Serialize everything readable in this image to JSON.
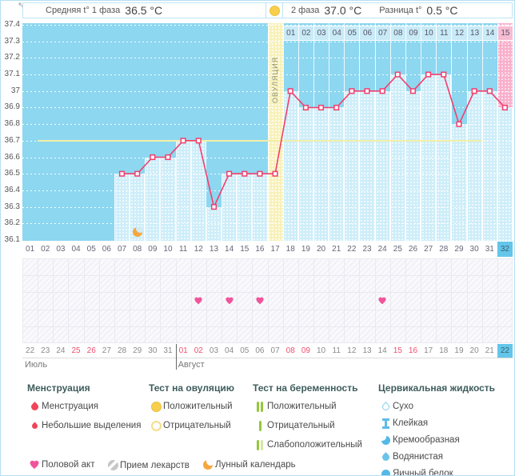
{
  "header": {
    "unit": "°C",
    "phase1_label": "Средняя t° 1 фаза",
    "phase1_value": "36.5 °C",
    "phase2_label": "2 фаза",
    "phase2_value": "37.0 °C",
    "diff_label": "Разница t°",
    "diff_value": "0.5 °C"
  },
  "chart_data": {
    "type": "line",
    "title": "Basal body temperature cycle chart",
    "ylabel": "°C",
    "ylim": [
      36.1,
      37.4
    ],
    "ytick_step": 0.1,
    "grid": "dotted-white",
    "cycle_days": [
      1,
      2,
      3,
      4,
      5,
      6,
      7,
      8,
      9,
      10,
      11,
      12,
      13,
      14,
      15,
      16,
      17,
      18,
      19,
      20,
      21,
      22,
      23,
      24,
      25,
      26,
      27,
      28,
      29,
      30,
      31,
      32
    ],
    "temps": [
      null,
      null,
      null,
      null,
      null,
      null,
      36.5,
      36.5,
      36.6,
      36.6,
      36.7,
      36.7,
      36.3,
      36.5,
      36.5,
      36.5,
      36.5,
      37.0,
      36.9,
      36.9,
      36.9,
      37.0,
      37.0,
      37.0,
      37.1,
      37.0,
      37.1,
      37.1,
      36.8,
      37.0,
      37.0,
      36.9
    ],
    "coverline_temp": 36.7,
    "ovulation_day": 17,
    "ovulation_label": "ОВУЛЯЦИЯ",
    "phase2_day_labels": [
      "01",
      "02",
      "03",
      "04",
      "05",
      "06",
      "07",
      "08",
      "09",
      "10",
      "11",
      "12",
      "13",
      "14",
      "15"
    ],
    "current_day": 32,
    "moon_day": 8,
    "intercourse_days": [
      12,
      14,
      16,
      24
    ],
    "line_color": "#F23F6E",
    "bg_color": "#8DD7F0",
    "bar_color": "#CDEDF9",
    "ovulation_column_color": "#F8F1B9",
    "current_column_color": "#F9AFCB"
  },
  "day_numbers": [
    "01",
    "02",
    "03",
    "04",
    "05",
    "06",
    "07",
    "08",
    "09",
    "10",
    "11",
    "12",
    "13",
    "14",
    "15",
    "16",
    "17",
    "18",
    "19",
    "20",
    "21",
    "22",
    "23",
    "24",
    "25",
    "26",
    "27",
    "28",
    "29",
    "30",
    "31",
    "32"
  ],
  "calendar": {
    "dates": [
      {
        "label": "22",
        "red": false,
        "today": false
      },
      {
        "label": "23",
        "red": false,
        "today": false
      },
      {
        "label": "24",
        "red": false,
        "today": false
      },
      {
        "label": "25",
        "red": true,
        "today": false
      },
      {
        "label": "26",
        "red": true,
        "today": false
      },
      {
        "label": "27",
        "red": false,
        "today": false
      },
      {
        "label": "28",
        "red": false,
        "today": false
      },
      {
        "label": "29",
        "red": false,
        "today": false
      },
      {
        "label": "30",
        "red": false,
        "today": false
      },
      {
        "label": "31",
        "red": false,
        "today": false
      },
      {
        "label": "01",
        "red": true,
        "today": false
      },
      {
        "label": "02",
        "red": true,
        "today": false
      },
      {
        "label": "03",
        "red": false,
        "today": false
      },
      {
        "label": "04",
        "red": false,
        "today": false
      },
      {
        "label": "05",
        "red": false,
        "today": false
      },
      {
        "label": "06",
        "red": false,
        "today": false
      },
      {
        "label": "07",
        "red": false,
        "today": false
      },
      {
        "label": "08",
        "red": true,
        "today": false
      },
      {
        "label": "09",
        "red": true,
        "today": false
      },
      {
        "label": "10",
        "red": false,
        "today": false
      },
      {
        "label": "11",
        "red": false,
        "today": false
      },
      {
        "label": "12",
        "red": false,
        "today": false
      },
      {
        "label": "13",
        "red": false,
        "today": false
      },
      {
        "label": "14",
        "red": false,
        "today": false
      },
      {
        "label": "15",
        "red": true,
        "today": false
      },
      {
        "label": "16",
        "red": true,
        "today": false
      },
      {
        "label": "17",
        "red": false,
        "today": false
      },
      {
        "label": "18",
        "red": false,
        "today": false
      },
      {
        "label": "19",
        "red": false,
        "today": false
      },
      {
        "label": "20",
        "red": false,
        "today": false
      },
      {
        "label": "21",
        "red": false,
        "today": false
      },
      {
        "label": "22",
        "red": false,
        "today": true
      }
    ],
    "months": [
      {
        "name": "Июль",
        "from_col": 1
      },
      {
        "name": "Август",
        "from_col": 11
      }
    ]
  },
  "legend": {
    "groups": [
      {
        "title": "Менструация",
        "items": [
          {
            "icon": "drop-big",
            "label": "Менструация"
          },
          {
            "icon": "drop-small",
            "label": "Небольшие выделения"
          }
        ]
      },
      {
        "title": "Тест на овуляцию",
        "items": [
          {
            "icon": "ovu-pos",
            "label": "Положительный"
          },
          {
            "icon": "ovu-neg",
            "label": "Отрицательный"
          }
        ]
      },
      {
        "title": "Тест на беременность",
        "items": [
          {
            "icon": "preg-pos",
            "label": "Положительный"
          },
          {
            "icon": "preg-neg",
            "label": "Отрицательный"
          },
          {
            "icon": "preg-weak",
            "label": "Слабоположительный"
          }
        ]
      },
      {
        "title": "Цервикальная жидкость",
        "items": [
          {
            "icon": "cf-dry",
            "label": "Сухо"
          },
          {
            "icon": "cf-sticky",
            "label": "Клейкая"
          },
          {
            "icon": "cf-cream",
            "label": "Кремообразная"
          },
          {
            "icon": "cf-watery",
            "label": "Водянистая"
          },
          {
            "icon": "cf-egg",
            "label": "Яичный белок"
          }
        ]
      }
    ],
    "extra_items": [
      {
        "icon": "heart",
        "label": "Половой акт"
      },
      {
        "icon": "pills",
        "label": "Прием лекарств"
      },
      {
        "icon": "moon",
        "label": "Лунный календарь"
      }
    ]
  }
}
